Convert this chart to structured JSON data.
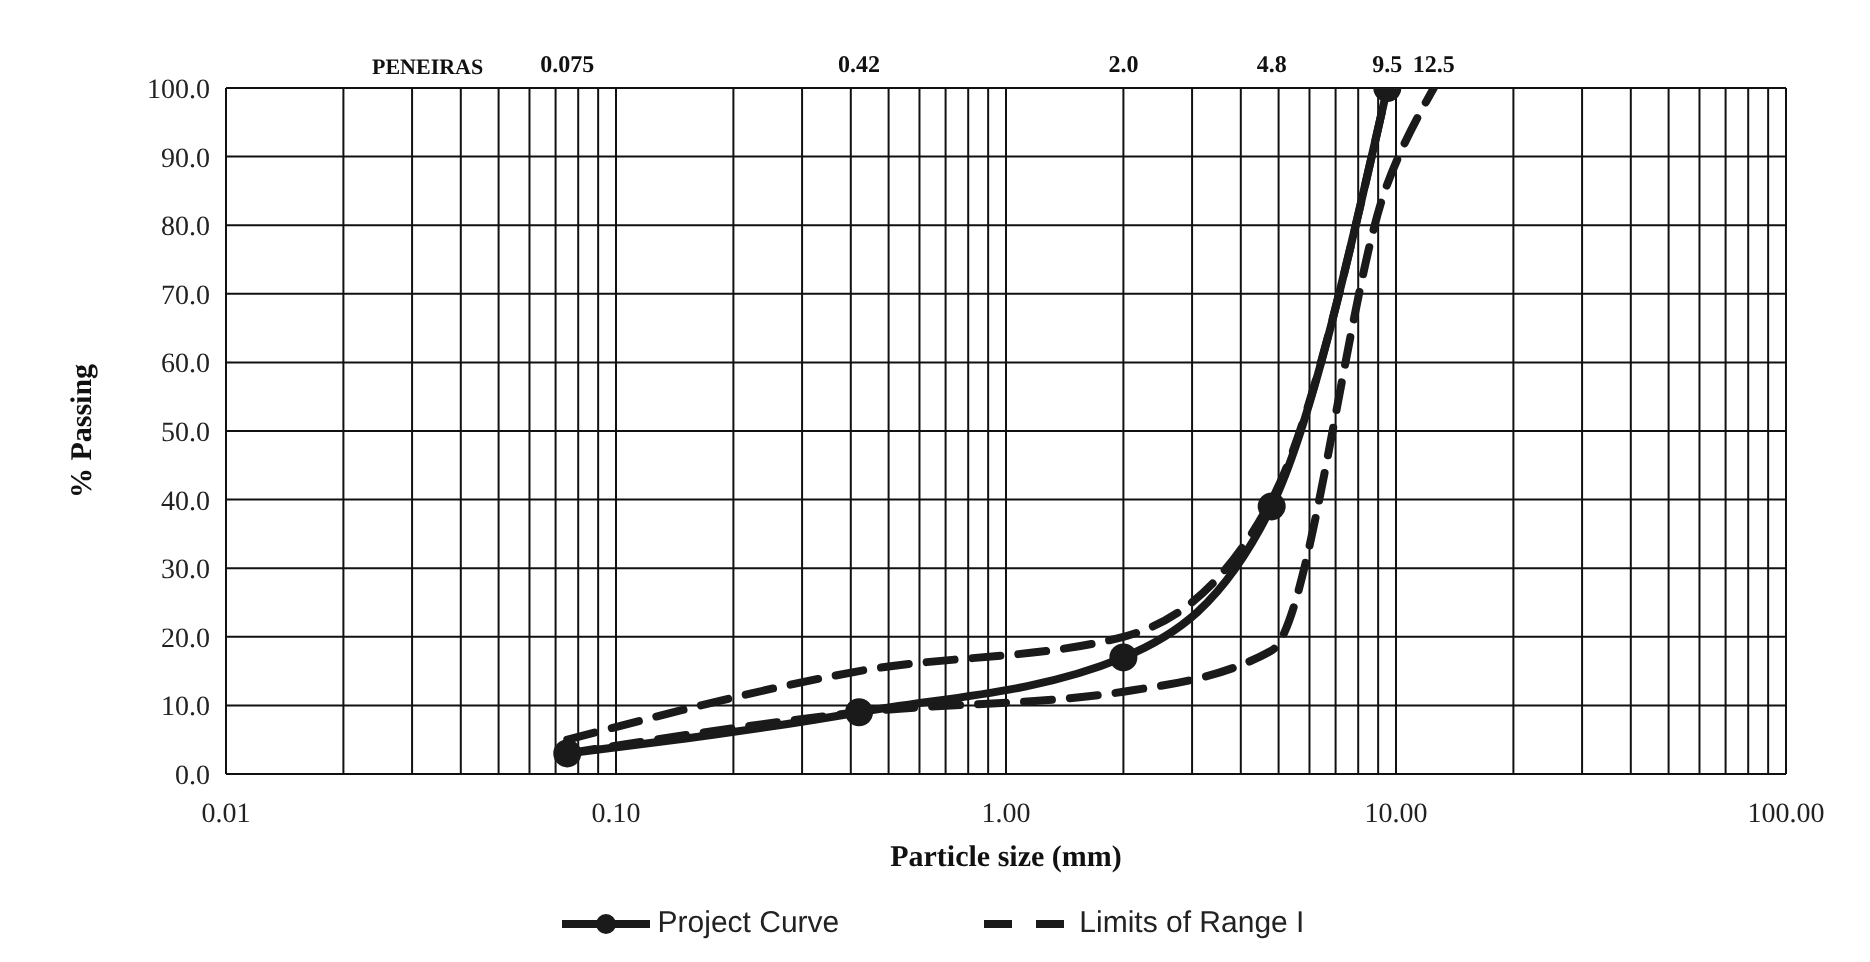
{
  "chart_data": {
    "type": "line",
    "xlabel": "Particle size (mm)",
    "ylabel": "% Passing",
    "annotations": [
      "PENEIRAS",
      "0.075",
      "0.42",
      "2.0",
      "4.8",
      "9.5",
      "12.5"
    ],
    "xlim": [
      0.01,
      100
    ],
    "xticks": [
      {
        "value": 0.01,
        "label": "0.01"
      },
      {
        "value": 0.02,
        "label": null
      },
      {
        "value": 0.03,
        "label": null
      },
      {
        "value": 0.04,
        "label": null
      },
      {
        "value": 0.05,
        "label": null
      },
      {
        "value": 0.06,
        "label": null
      },
      {
        "value": 0.07,
        "label": null
      },
      {
        "value": 0.08,
        "label": null
      },
      {
        "value": 0.09,
        "label": null
      },
      {
        "value": 0.1,
        "label": "0.10"
      },
      {
        "value": 0.2,
        "label": null
      },
      {
        "value": 0.3,
        "label": null
      },
      {
        "value": 0.4,
        "label": null
      },
      {
        "value": 0.5,
        "label": null
      },
      {
        "value": 0.6,
        "label": null
      },
      {
        "value": 0.7,
        "label": null
      },
      {
        "value": 0.8,
        "label": null
      },
      {
        "value": 0.9,
        "label": null
      },
      {
        "value": 1,
        "label": "1.00"
      },
      {
        "value": 2,
        "label": null
      },
      {
        "value": 3,
        "label": null
      },
      {
        "value": 4,
        "label": null
      },
      {
        "value": 5,
        "label": null
      },
      {
        "value": 6,
        "label": null
      },
      {
        "value": 7,
        "label": null
      },
      {
        "value": 8,
        "label": null
      },
      {
        "value": 9,
        "label": null
      },
      {
        "value": 10,
        "label": "10.00"
      },
      {
        "value": 20,
        "label": null
      },
      {
        "value": 30,
        "label": null
      },
      {
        "value": 40,
        "label": null
      },
      {
        "value": 50,
        "label": null
      },
      {
        "value": 60,
        "label": null
      },
      {
        "value": 70,
        "label": null
      },
      {
        "value": 80,
        "label": null
      },
      {
        "value": 90,
        "label": null
      },
      {
        "value": 100,
        "label": "100.00"
      }
    ],
    "ylim": [
      0,
      100
    ],
    "yticks": [
      {
        "value": 0,
        "label": "0.0"
      },
      {
        "value": 10,
        "label": "10.0"
      },
      {
        "value": 20,
        "label": "20.0"
      },
      {
        "value": 30,
        "label": "30.0"
      },
      {
        "value": 40,
        "label": "40.0"
      },
      {
        "value": 50,
        "label": "50.0"
      },
      {
        "value": 60,
        "label": "60.0"
      },
      {
        "value": 70,
        "label": "70.0"
      },
      {
        "value": 80,
        "label": "80.0"
      },
      {
        "value": 90,
        "label": "90.0"
      },
      {
        "value": 100,
        "label": "100.0"
      }
    ],
    "log": "x",
    "grid": true,
    "legend": "bottom",
    "series": [
      {
        "name": "Project Curve",
        "color": "#1a1a1a",
        "marker": "circle",
        "line_style": "solid",
        "x": [
          0.075,
          0.42,
          2.0,
          4.8,
          9.5
        ],
        "values": [
          3,
          9,
          17,
          39,
          100
        ]
      },
      {
        "name": "Limits of Range I",
        "color": "#1a1a1a",
        "marker": "none",
        "line_style": "dashed",
        "x": [
          0.075,
          0.42,
          2.0,
          4.8,
          9.5
        ],
        "values": [
          5,
          15,
          20,
          40,
          100
        ]
      },
      {
        "color": "#1a1a1a",
        "marker": "none",
        "line_style": "dashed",
        "x": [
          0.075,
          0.42,
          2.0,
          4.8,
          9.5,
          12.5
        ],
        "values": [
          3,
          9,
          12,
          18,
          86,
          100
        ]
      }
    ]
  }
}
